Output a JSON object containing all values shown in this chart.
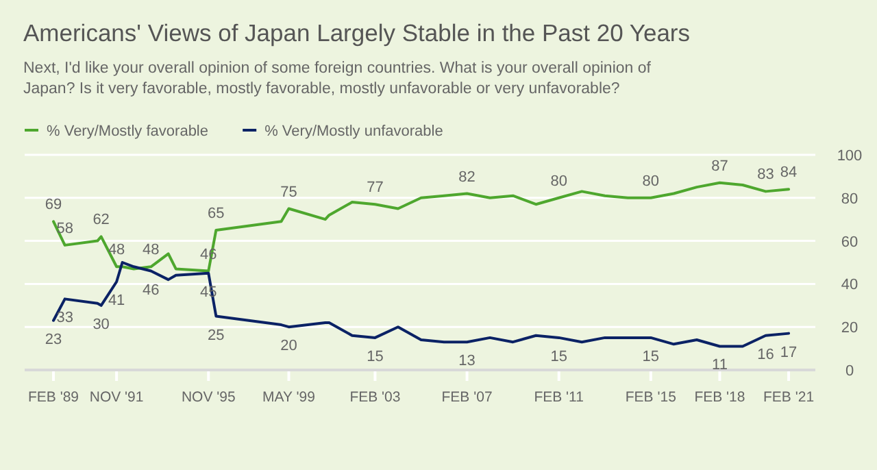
{
  "chart_data": {
    "type": "line",
    "title": "Americans' Views of Japan Largely Stable in the Past 20 Years",
    "subtitle": "Next, I'd like your overall opinion of some foreign countries. What is your overall opinion of Japan? Is it very favorable, mostly favorable, mostly unfavorable or very unfavorable?",
    "x": [
      "1989-02",
      "1989-08",
      "1991-01",
      "1991-03",
      "1991-11",
      "1992-02",
      "1992-08",
      "1993-05",
      "1994-02",
      "1994-06",
      "1995-11",
      "1996-03",
      "1999-01",
      "1999-05",
      "2000-12",
      "2001-02",
      "2002-02",
      "2003-02",
      "2004-02",
      "2005-02",
      "2006-02",
      "2007-02",
      "2008-02",
      "2009-02",
      "2010-02",
      "2011-02",
      "2012-02",
      "2013-02",
      "2014-02",
      "2015-02",
      "2016-02",
      "2017-02",
      "2018-02",
      "2019-02",
      "2020-02",
      "2021-02"
    ],
    "series": [
      {
        "name": "% Very/Mostly favorable",
        "color": "#4ea72e",
        "values": [
          69,
          58,
          60,
          62,
          48,
          48,
          47,
          48,
          54,
          47,
          46,
          65,
          69,
          75,
          70,
          72,
          78,
          77,
          75,
          80,
          81,
          82,
          80,
          81,
          77,
          80,
          83,
          81,
          80,
          80,
          82,
          85,
          87,
          86,
          83,
          84
        ],
        "value_labels": [
          "69",
          "58",
          null,
          "62",
          "48",
          null,
          null,
          "48",
          null,
          null,
          "46",
          "65",
          null,
          "75",
          null,
          null,
          null,
          "77",
          null,
          null,
          null,
          "82",
          null,
          null,
          null,
          "80",
          null,
          null,
          null,
          "80",
          null,
          null,
          "87",
          null,
          "83",
          "84"
        ]
      },
      {
        "name": "% Very/Mostly unfavorable",
        "color": "#0b2265",
        "values": [
          23,
          33,
          31,
          30,
          41,
          50,
          48,
          46,
          42,
          44,
          45,
          25,
          21,
          20,
          22,
          22,
          16,
          15,
          20,
          14,
          13,
          13,
          15,
          13,
          16,
          15,
          13,
          15,
          15,
          15,
          12,
          14,
          11,
          11,
          16,
          17
        ],
        "value_labels": [
          "23",
          "33",
          null,
          "30",
          "41",
          null,
          null,
          "46",
          null,
          null,
          "45",
          "25",
          null,
          "20",
          null,
          null,
          null,
          "15",
          null,
          null,
          null,
          "13",
          null,
          null,
          null,
          "15",
          null,
          null,
          null,
          "15",
          null,
          null,
          "11",
          null,
          "16",
          "17"
        ]
      }
    ],
    "xlim": [
      "1987-11",
      "2022-04"
    ],
    "xticks": [
      {
        "value": "1989-02",
        "label": "FEB '89"
      },
      {
        "value": "1991-11",
        "label": "NOV '91"
      },
      {
        "value": "1995-11",
        "label": "NOV '95"
      },
      {
        "value": "1999-05",
        "label": "MAY '99"
      },
      {
        "value": "2003-02",
        "label": "FEB '03"
      },
      {
        "value": "2007-02",
        "label": "FEB '07"
      },
      {
        "value": "2011-02",
        "label": "FEB '11"
      },
      {
        "value": "2015-02",
        "label": "FEB '15"
      },
      {
        "value": "2018-02",
        "label": "FEB '18"
      },
      {
        "value": "2021-02",
        "label": "FEB '21"
      }
    ],
    "ylim": [
      0,
      100
    ],
    "yticks": [
      0,
      20,
      40,
      60,
      80,
      100
    ],
    "grid": "y",
    "legend": "top left",
    "marker": "none",
    "line_style": "solid"
  }
}
